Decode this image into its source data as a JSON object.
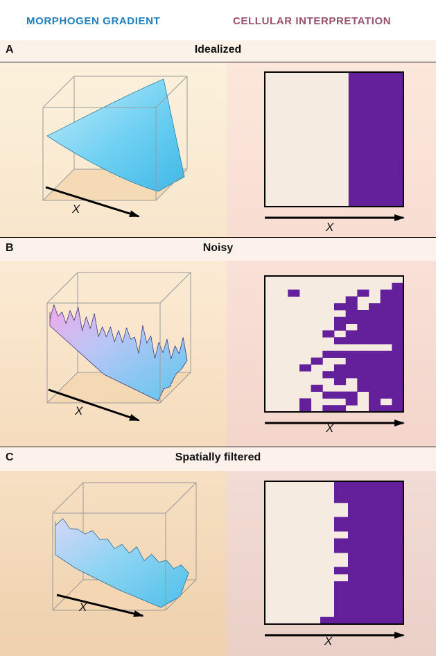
{
  "header": {
    "left": "MORPHOGEN GRADIENT",
    "right": "CELLULAR INTERPRETATION",
    "left_color": "#1f80c0",
    "right_color": "#99506b"
  },
  "axis_label": "X",
  "colors": {
    "cell_on": "#63209a",
    "cell_off": "#f6ebe1",
    "surface": "#6fd0f2",
    "noisy_pink": "#f2a9ea",
    "floor": "#f4d7b2"
  },
  "panels": [
    {
      "letter": "A",
      "title": "Idealized",
      "boundary_columns": [
        5,
        5,
        5,
        5,
        5,
        5,
        5,
        5,
        5,
        5,
        5,
        5,
        5,
        5,
        5,
        5,
        5,
        5,
        5,
        5
      ]
    },
    {
      "letter": "B",
      "title": "Noisy",
      "rows": [
        "............",
        "...........#",
        "..#.....#.##",
        ".......#..##",
        "......##.###",
        ".......#####",
        "......######",
        "......#.####",
        ".....#.#####",
        "......######",
        "...........#",
        ".....#######",
        "....#..#####",
        "...#..######",
        ".....#######",
        "......#.####",
        "....#...####",
        ".....###.###",
        "...#...#.#.#",
        "...#.##..###"
      ]
    },
    {
      "letter": "C",
      "title": "Spatially filtered",
      "boundary_columns": [
        5,
        5,
        5,
        6,
        6,
        5,
        5,
        6,
        5,
        5,
        6,
        6,
        5,
        6,
        5,
        5,
        5,
        5,
        5,
        4
      ]
    }
  ]
}
